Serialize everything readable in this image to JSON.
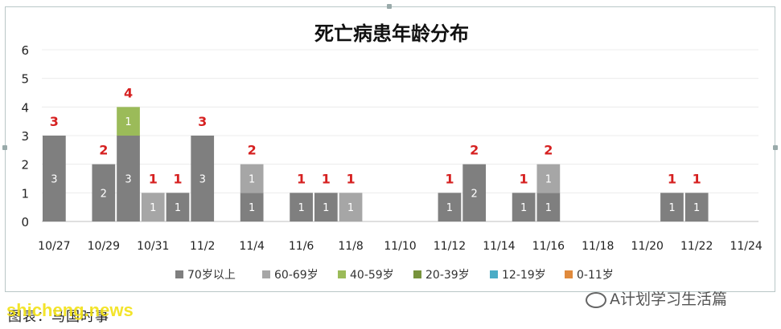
{
  "chart_data": {
    "type": "bar",
    "stacked": true,
    "title": "死亡病患年龄分布",
    "xlabel": "",
    "ylabel": "",
    "ylim": [
      0,
      6
    ],
    "yticks": [
      "0",
      "1",
      "2",
      "3",
      "4",
      "5",
      "6"
    ],
    "grid": true,
    "legend_position": "bottom",
    "x_tick_labels": [
      "10/27",
      "10/29",
      "10/31",
      "11/2",
      "11/4",
      "11/6",
      "11/8",
      "11/10",
      "11/12",
      "11/14",
      "11/16",
      "11/18",
      "11/20",
      "11/22",
      "11/24"
    ],
    "categories": [
      "10/27",
      "10/28",
      "10/29",
      "10/30",
      "10/31",
      "11/1",
      "11/2",
      "11/3",
      "11/4",
      "11/5",
      "11/6",
      "11/7",
      "11/8",
      "11/9",
      "11/10",
      "11/11",
      "11/12",
      "11/13",
      "11/14",
      "11/15",
      "11/16",
      "11/17",
      "11/18",
      "11/19",
      "11/20",
      "11/21",
      "11/22",
      "11/23",
      "11/24"
    ],
    "series": [
      {
        "name": "70岁以上",
        "color": "#7f7f7f",
        "values": [
          3,
          0,
          2,
          3,
          0,
          1,
          3,
          0,
          1,
          0,
          1,
          1,
          0,
          0,
          0,
          0,
          1,
          2,
          0,
          1,
          1,
          0,
          0,
          0,
          0,
          1,
          1,
          0,
          0
        ]
      },
      {
        "name": "60-69岁",
        "color": "#a6a6a6",
        "values": [
          0,
          0,
          0,
          0,
          1,
          0,
          0,
          0,
          1,
          0,
          0,
          0,
          1,
          0,
          0,
          0,
          0,
          0,
          0,
          0,
          1,
          0,
          0,
          0,
          0,
          0,
          0,
          0,
          0
        ]
      },
      {
        "name": "40-59岁",
        "color": "#9bbb59",
        "values": [
          0,
          0,
          0,
          1,
          0,
          0,
          0,
          0,
          0,
          0,
          0,
          0,
          0,
          0,
          0,
          0,
          0,
          0,
          0,
          0,
          0,
          0,
          0,
          0,
          0,
          0,
          0,
          0,
          0
        ]
      },
      {
        "name": "20-39岁",
        "color": "#77933c",
        "values": [
          0,
          0,
          0,
          0,
          0,
          0,
          0,
          0,
          0,
          0,
          0,
          0,
          0,
          0,
          0,
          0,
          0,
          0,
          0,
          0,
          0,
          0,
          0,
          0,
          0,
          0,
          0,
          0,
          0
        ]
      },
      {
        "name": "12-19岁",
        "color": "#4bacc6",
        "values": [
          0,
          0,
          0,
          0,
          0,
          0,
          0,
          0,
          0,
          0,
          0,
          0,
          0,
          0,
          0,
          0,
          0,
          0,
          0,
          0,
          0,
          0,
          0,
          0,
          0,
          0,
          0,
          0,
          0
        ]
      },
      {
        "name": "0-11岁",
        "color": "#e08a3c",
        "values": [
          0,
          0,
          0,
          0,
          0,
          0,
          0,
          0,
          0,
          0,
          0,
          0,
          0,
          0,
          0,
          0,
          0,
          0,
          0,
          0,
          0,
          0,
          0,
          0,
          0,
          0,
          0,
          0,
          0
        ]
      }
    ],
    "totals_color": "#d62020"
  },
  "caption": "图表：马国时事",
  "watermark": "shicheng.news",
  "brand": "A计划学习生活篇"
}
